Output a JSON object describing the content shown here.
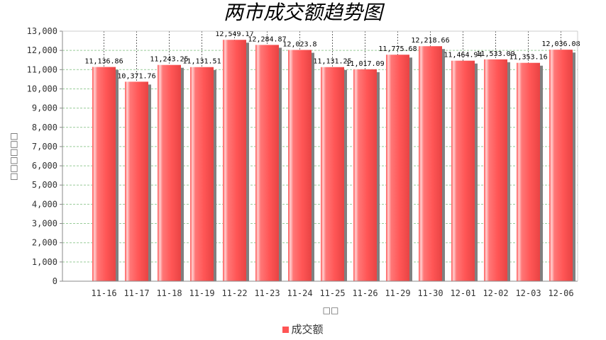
{
  "chart_data": {
    "type": "bar",
    "title": "两市成交额趋势图",
    "xlabel": "□□",
    "ylabel": "□□□□□□",
    "categories": [
      "11-16",
      "11-17",
      "11-18",
      "11-19",
      "11-22",
      "11-23",
      "11-24",
      "11-25",
      "11-26",
      "11-29",
      "11-30",
      "12-01",
      "12-02",
      "12-03",
      "12-06"
    ],
    "series": [
      {
        "name": "成交额",
        "values": [
          11136.86,
          10371.76,
          11243.25,
          11131.51,
          12549.17,
          12284.87,
          12023.8,
          11131.25,
          11017.09,
          11775.68,
          12218.66,
          11464.94,
          11533.09,
          11353.16,
          12036.08
        ],
        "labels": [
          "11,136.86",
          "10,371.76",
          "11,243.25",
          "11,131.51",
          "12,549.17",
          "12,284.87",
          "12,023.8",
          "11,131.25",
          "11,017.09",
          "11,775.68",
          "12,218.66",
          "11,464.94",
          "11,533.09",
          "11,353.16",
          "12,036.08"
        ]
      }
    ],
    "ylim": [
      0,
      13000
    ],
    "yticks": [
      "0",
      "1,000",
      "2,000",
      "3,000",
      "4,000",
      "5,000",
      "6,000",
      "7,000",
      "8,000",
      "9,000",
      "10,000",
      "11,000",
      "12,000",
      "13,000"
    ],
    "colors": {
      "bar": "#ff5555",
      "shadow": "#808080",
      "grid": "#99cc99",
      "axis": "#888888"
    },
    "grid": true,
    "legend_position": "bottom"
  }
}
